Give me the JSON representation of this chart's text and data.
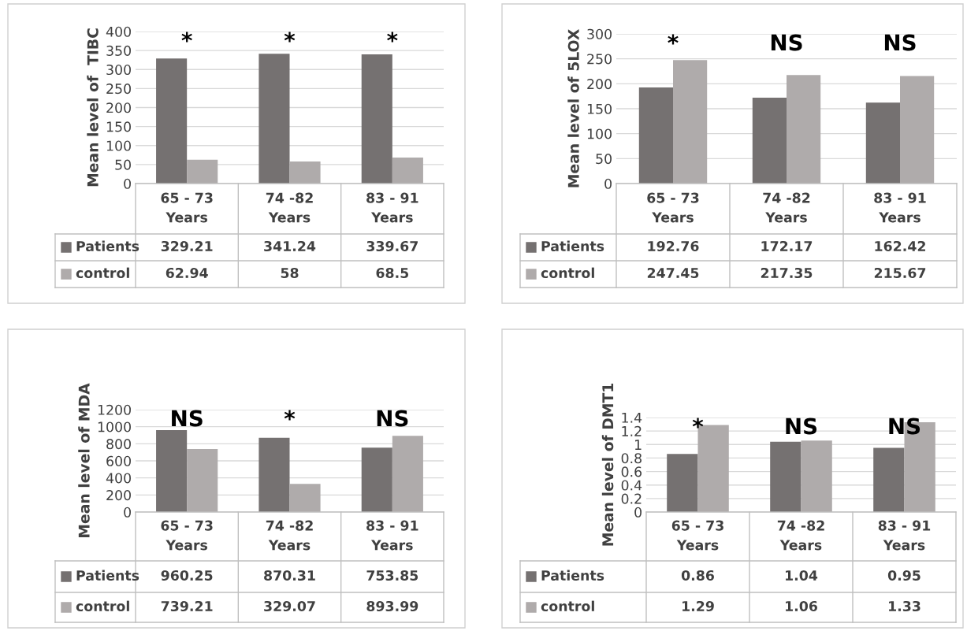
{
  "chart_data": [
    {
      "type": "bar",
      "ylabel": "Mean level of  TIBC",
      "categories": [
        "65 - 73\nYears",
        "74 -82\nYears",
        "83 - 91\nYears"
      ],
      "series": [
        {
          "name": "Patients",
          "color": "#757171",
          "values": [
            329.21,
            341.24,
            339.67
          ]
        },
        {
          "name": "control",
          "color": "#afabab",
          "values": [
            62.94,
            58,
            68.5
          ]
        }
      ],
      "ylim": [
        0,
        400
      ],
      "yticks": [
        0,
        50,
        100,
        150,
        200,
        250,
        300,
        350,
        400
      ],
      "grid": "y",
      "data_labels": true,
      "legend": "bottom left",
      "annotations": [
        "*",
        "*",
        "*"
      ]
    },
    {
      "type": "bar",
      "ylabel": "Mean level of 5LOX",
      "categories": [
        "65 - 73\nYears",
        "74 -82\nYears",
        "83 - 91\nYears"
      ],
      "series": [
        {
          "name": "Patients",
          "color": "#757171",
          "values": [
            192.76,
            172.17,
            162.42
          ]
        },
        {
          "name": "control",
          "color": "#afabab",
          "values": [
            247.45,
            217.35,
            215.67
          ]
        }
      ],
      "ylim": [
        0,
        300
      ],
      "yticks": [
        0,
        50,
        100,
        150,
        200,
        250,
        300
      ],
      "grid": "y",
      "data_labels": true,
      "legend": "bottom left",
      "annotations": [
        "*",
        "NS",
        "NS"
      ]
    },
    {
      "type": "bar",
      "ylabel": "Mean level of MDA",
      "categories": [
        "65 - 73\nYears",
        "74 -82\nYears",
        "83 - 91\nYears"
      ],
      "series": [
        {
          "name": "Patients",
          "color": "#757171",
          "values": [
            960.25,
            870.31,
            753.85
          ]
        },
        {
          "name": "control",
          "color": "#afabab",
          "values": [
            739.21,
            329.07,
            893.99
          ]
        }
      ],
      "ylim": [
        0,
        1200
      ],
      "yticks": [
        0,
        200,
        400,
        600,
        800,
        1000,
        1200
      ],
      "grid": "y",
      "data_labels": true,
      "legend": "bottom left",
      "annotations": [
        "NS",
        "*",
        "NS"
      ]
    },
    {
      "type": "bar",
      "ylabel": "Mean level of DMT1",
      "categories": [
        "65 - 73\nYears",
        "74 -82\nYears",
        "83 - 91\nYears"
      ],
      "series": [
        {
          "name": "Patients",
          "color": "#757171",
          "values": [
            0.86,
            1.04,
            0.95
          ]
        },
        {
          "name": "control",
          "color": "#afabab",
          "values": [
            1.29,
            1.06,
            1.33
          ]
        }
      ],
      "ylim": [
        0,
        1.4
      ],
      "yticks": [
        0,
        {
          "value": 0.2,
          "label": "0.2"
        },
        {
          "value": 0.4,
          "label": "0.4"
        },
        {
          "value": 0.6,
          "label": "0.6"
        },
        {
          "value": 0.8,
          "label": "0.8"
        },
        1,
        {
          "value": 1.2,
          "label": "1.2"
        },
        {
          "value": 1.4,
          "label": "1.4"
        }
      ],
      "grid": "y",
      "data_labels": true,
      "legend": "bottom left",
      "annotations": [
        "*",
        "NS",
        "NS"
      ]
    }
  ]
}
